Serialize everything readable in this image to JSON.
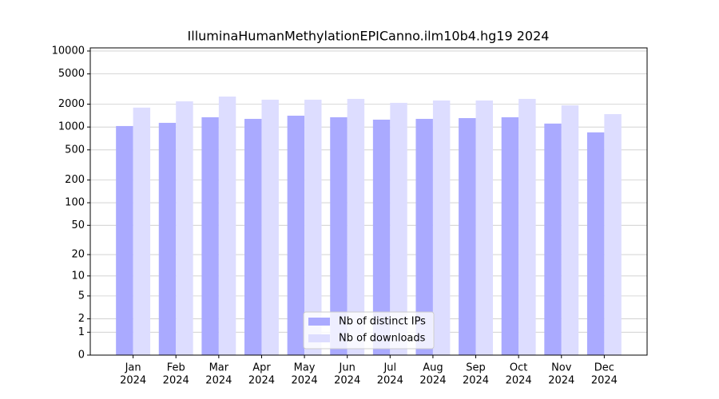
{
  "chart_data": {
    "type": "bar",
    "title": "IlluminaHumanMethylationEPICanno.ilm10b4.hg19 2024",
    "categories": [
      [
        "Jan",
        "2024"
      ],
      [
        "Feb",
        "2024"
      ],
      [
        "Mar",
        "2024"
      ],
      [
        "Apr",
        "2024"
      ],
      [
        "May",
        "2024"
      ],
      [
        "Jun",
        "2024"
      ],
      [
        "Jul",
        "2024"
      ],
      [
        "Aug",
        "2024"
      ],
      [
        "Sep",
        "2024"
      ],
      [
        "Oct",
        "2024"
      ],
      [
        "Nov",
        "2024"
      ],
      [
        "Dec",
        "2024"
      ]
    ],
    "series": [
      {
        "name": "Nb of distinct IPs",
        "color": "#aaaaff",
        "values": [
          1030,
          1135,
          1345,
          1280,
          1410,
          1345,
          1250,
          1280,
          1310,
          1345,
          1110,
          850
        ]
      },
      {
        "name": "Nb of downloads",
        "color": "#ddddff",
        "values": [
          1800,
          2180,
          2520,
          2290,
          2290,
          2345,
          2080,
          2235,
          2235,
          2345,
          1930,
          1480
        ]
      }
    ],
    "yscale": "log1p",
    "ylim": [
      0,
      11000
    ],
    "yticks": [
      0,
      1,
      2,
      5,
      10,
      20,
      50,
      100,
      200,
      500,
      1000,
      2000,
      5000,
      10000
    ],
    "grid": true,
    "legend": "lower center"
  }
}
